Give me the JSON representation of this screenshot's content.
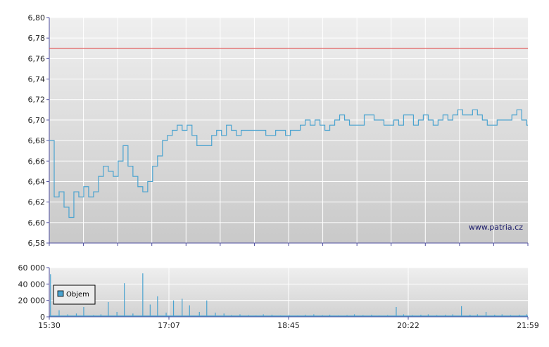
{
  "watermark": "www.patria.cz",
  "colors": {
    "price_line": "#4aa3d0",
    "reference_line": "#e05a5a",
    "volume_bar": "#4aa3d0",
    "grid": "#ffffff",
    "plot_top": "#efefef",
    "plot_bottom": "#c9c9c9",
    "axis": "#4f4f9f"
  },
  "legend": {
    "label": "Objem"
  },
  "chart_data": [
    {
      "type": "line",
      "name": "price",
      "x": [
        "15:30",
        "15:34",
        "15:38",
        "15:42",
        "15:46",
        "15:50",
        "15:54",
        "15:58",
        "16:02",
        "16:06",
        "16:10",
        "16:14",
        "16:18",
        "16:22",
        "16:26",
        "16:30",
        "16:34",
        "16:38",
        "16:42",
        "16:46",
        "16:50",
        "16:54",
        "16:58",
        "17:02",
        "17:06",
        "17:10",
        "17:14",
        "17:18",
        "17:22",
        "17:26",
        "17:30",
        "17:34",
        "17:38",
        "17:42",
        "17:46",
        "17:50",
        "17:54",
        "17:58",
        "18:02",
        "18:06",
        "18:10",
        "18:14",
        "18:18",
        "18:22",
        "18:26",
        "18:30",
        "18:34",
        "18:38",
        "18:42",
        "18:46",
        "18:50",
        "18:54",
        "18:58",
        "19:02",
        "19:06",
        "19:10",
        "19:14",
        "19:18",
        "19:22",
        "19:26",
        "19:30",
        "19:34",
        "19:38",
        "19:42",
        "19:46",
        "19:50",
        "19:54",
        "19:58",
        "20:02",
        "20:06",
        "20:10",
        "20:14",
        "20:18",
        "20:22",
        "20:26",
        "20:30",
        "20:34",
        "20:38",
        "20:42",
        "20:46",
        "20:50",
        "20:54",
        "20:58",
        "21:02",
        "21:06",
        "21:10",
        "21:14",
        "21:18",
        "21:22",
        "21:26",
        "21:30",
        "21:34",
        "21:38",
        "21:42",
        "21:46",
        "21:50",
        "21:54",
        "21:58"
      ],
      "y": [
        6.68,
        6.625,
        6.63,
        6.615,
        6.605,
        6.63,
        6.625,
        6.635,
        6.625,
        6.63,
        6.645,
        6.655,
        6.65,
        6.645,
        6.66,
        6.675,
        6.655,
        6.645,
        6.635,
        6.63,
        6.64,
        6.655,
        6.665,
        6.68,
        6.685,
        6.69,
        6.695,
        6.69,
        6.695,
        6.685,
        6.675,
        6.675,
        6.675,
        6.685,
        6.69,
        6.685,
        6.695,
        6.69,
        6.685,
        6.69,
        6.69,
        6.69,
        6.69,
        6.69,
        6.685,
        6.685,
        6.69,
        6.69,
        6.685,
        6.69,
        6.69,
        6.695,
        6.7,
        6.695,
        6.7,
        6.695,
        6.69,
        6.695,
        6.7,
        6.705,
        6.7,
        6.695,
        6.695,
        6.695,
        6.705,
        6.705,
        6.7,
        6.7,
        6.695,
        6.695,
        6.7,
        6.695,
        6.705,
        6.705,
        6.695,
        6.7,
        6.705,
        6.7,
        6.695,
        6.7,
        6.705,
        6.7,
        6.705,
        6.71,
        6.705,
        6.705,
        6.71,
        6.705,
        6.7,
        6.695,
        6.695,
        6.7,
        6.7,
        6.7,
        6.705,
        6.71,
        6.7,
        6.695
      ],
      "reference_line": 6.77,
      "ylim": [
        6.58,
        6.8
      ],
      "yticks": [
        "6,58",
        "6,60",
        "6,62",
        "6,64",
        "6,66",
        "6,68",
        "6,70",
        "6,72",
        "6,74",
        "6,76",
        "6,78",
        "6,80"
      ],
      "xlim": [
        "15:30",
        "21:59"
      ],
      "grid": true
    },
    {
      "type": "bar",
      "name": "volume",
      "x": [
        "15:31",
        "15:38",
        "15:45",
        "15:52",
        "15:58",
        "16:06",
        "16:12",
        "16:18",
        "16:25",
        "16:31",
        "16:38",
        "16:46",
        "16:52",
        "16:58",
        "17:05",
        "17:11",
        "17:18",
        "17:24",
        "17:32",
        "17:38",
        "17:45",
        "17:52",
        "17:58",
        "18:05",
        "18:12",
        "18:18",
        "18:24",
        "18:31",
        "18:38",
        "18:45",
        "18:52",
        "18:58",
        "19:05",
        "19:12",
        "19:18",
        "19:25",
        "19:32",
        "19:38",
        "19:45",
        "19:52",
        "19:58",
        "20:05",
        "20:12",
        "20:18",
        "20:25",
        "20:32",
        "20:38",
        "20:45",
        "20:52",
        "20:58",
        "21:05",
        "21:12",
        "21:18",
        "21:25",
        "21:32",
        "21:38",
        "21:45",
        "21:52",
        "21:58"
      ],
      "values": [
        52000,
        8000,
        3000,
        4000,
        12000,
        2000,
        3000,
        18000,
        6000,
        41000,
        4000,
        53000,
        15000,
        25000,
        5000,
        20000,
        22000,
        14000,
        6000,
        20000,
        5000,
        4000,
        2000,
        3000,
        2000,
        1500,
        3000,
        2500,
        1500,
        2000,
        1500,
        2500,
        3000,
        2000,
        2500,
        1500,
        2000,
        3000,
        2000,
        2500,
        1500,
        2000,
        12000,
        3000,
        2000,
        2500,
        3000,
        2000,
        2500,
        3000,
        13000,
        2500,
        3000,
        6000,
        2500,
        3000,
        2000,
        2500,
        3000
      ],
      "legend": [
        "Objem"
      ],
      "legend_position": "left",
      "ylim": [
        0,
        60000
      ],
      "yticks": [
        "0",
        "20 000",
        "40 000",
        "60 000"
      ],
      "xtick_labels": [
        "15:30",
        "17:07",
        "18:45",
        "20:22",
        "21:59"
      ],
      "grid": true
    }
  ]
}
